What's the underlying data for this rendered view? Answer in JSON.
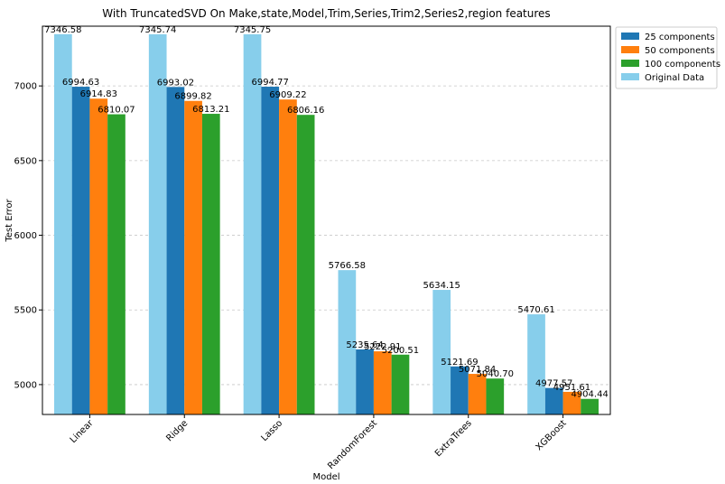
{
  "chart_data": {
    "type": "bar",
    "title": "With TruncatedSVD On Make,state,Model,Trim,Series,Trim2,Series2,region features",
    "xlabel": "Model",
    "ylabel": "Test Error",
    "ylim": [
      4800,
      7400
    ],
    "yticks": [
      5000,
      5500,
      6000,
      6500,
      7000
    ],
    "grid": "y-dashed",
    "legend_position": "top-right-outside",
    "categories": [
      "Linear",
      "Ridge",
      "Lasso",
      "RandomForest",
      "ExtraTrees",
      "XGBoost"
    ],
    "series": [
      {
        "name": "Original Data",
        "color": "#87ceeb",
        "values": [
          7346.58,
          7345.74,
          7345.75,
          5766.58,
          5634.15,
          5470.61
        ],
        "labels": [
          "7346.58",
          "7345.74",
          "7345.75",
          "5766.58",
          "5634.15",
          "5470.61"
        ]
      },
      {
        "name": "25 components",
        "color": "#1f77b4",
        "values": [
          6994.63,
          6993.02,
          6994.77,
          5235.64,
          5121.69,
          4977.57
        ],
        "labels": [
          "6994.63",
          "6993.02",
          "6994.77",
          "5235.64",
          "5121.69",
          "4977.57"
        ]
      },
      {
        "name": "50 components",
        "color": "#ff7f0e",
        "values": [
          6914.83,
          6899.82,
          6909.22,
          5222.91,
          5071.84,
          4951.61
        ],
        "labels": [
          "6914.83",
          "6899.82",
          "6909.22",
          "5222.91",
          "5071.84",
          "4951.61"
        ]
      },
      {
        "name": "100 components",
        "color": "#2ca02c",
        "values": [
          6810.07,
          6813.21,
          6806.16,
          5200.51,
          5040.7,
          4904.44
        ],
        "labels": [
          "6810.07",
          "6813.21",
          "6806.16",
          "5200.51",
          "5040.70",
          "4904.44"
        ]
      }
    ],
    "legend_order": [
      "25 components",
      "50 components",
      "100 components",
      "Original Data"
    ]
  }
}
